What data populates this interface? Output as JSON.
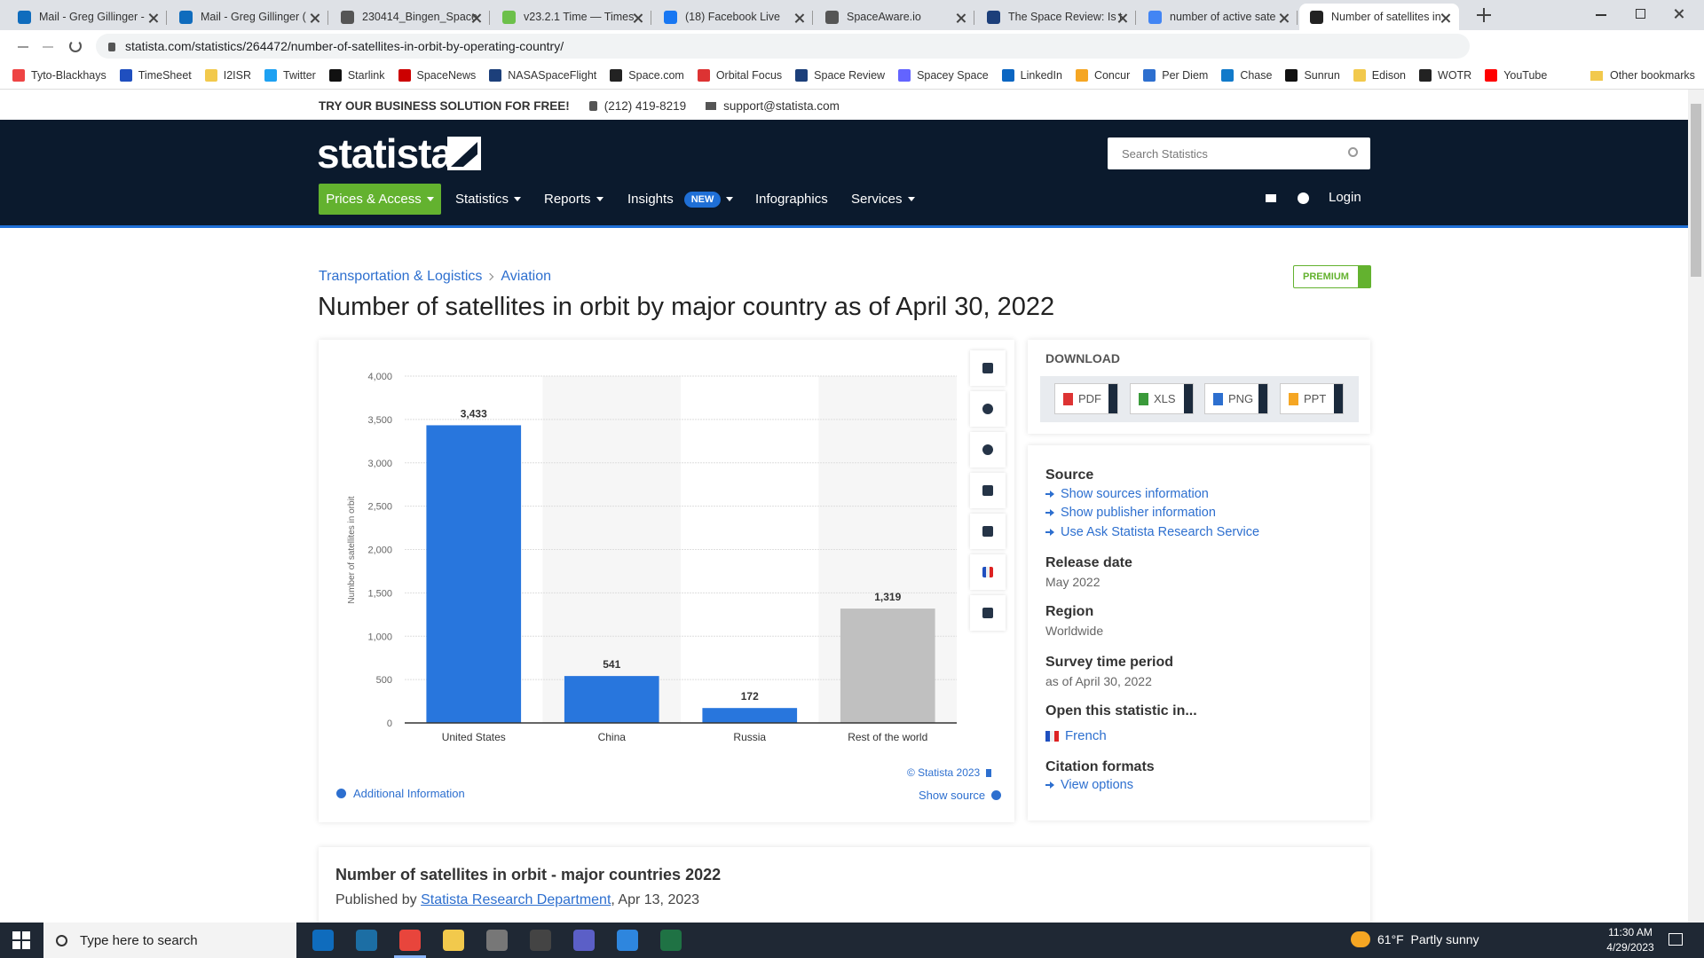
{
  "browser": {
    "tabs": [
      "Mail - Greg Gillinger -",
      "Mail - Greg Gillinger (",
      "230414_Bingen_Space",
      "v23.2.1 Time — Times",
      "(18) Facebook Live",
      "SpaceAware.io",
      "The Space Review: Is t",
      "number of active sate",
      "Number of satellites in"
    ],
    "url": "statista.com/statistics/264472/number-of-satellites-in-orbit-by-operating-country/",
    "bookmarks": [
      "Tyto-Blackhays",
      "TimeSheet",
      "I2ISR",
      "Twitter",
      "Starlink",
      "SpaceNews",
      "NASASpaceFlight",
      "Space.com",
      "Orbital Focus",
      "Space Review",
      "Spacey Space",
      "LinkedIn",
      "Concur",
      "Per Diem",
      "Chase",
      "Sunrun",
      "Edison",
      "WOTR",
      "YouTube"
    ],
    "other_bookmarks": "Other bookmarks"
  },
  "site": {
    "promo": "TRY OUR BUSINESS SOLUTION FOR FREE!",
    "phone": "(212) 419-8219",
    "email": "support@statista.com",
    "logo": "statista",
    "search_placeholder": "Search Statistics",
    "nav": [
      "Prices & Access",
      "Statistics",
      "Reports",
      "Insights",
      "Infographics",
      "Services"
    ],
    "new_badge": "NEW",
    "login": "Login"
  },
  "breadcrumbs": [
    "Transportation & Logistics",
    "Aviation"
  ],
  "premium": "PREMIUM",
  "page_title": "Number of satellites in orbit by major country as of April 30, 2022",
  "chart_data": {
    "type": "bar",
    "categories": [
      "United States",
      "China",
      "Russia",
      "Rest of the world"
    ],
    "values": [
      3433,
      541,
      172,
      1319
    ],
    "value_labels": [
      "3,433",
      "541",
      "172",
      "1,319"
    ],
    "colors": [
      "#2876dd",
      "#2876dd",
      "#2876dd",
      "#c0c0c0"
    ],
    "ylabel": "Number of satellites in orbit",
    "ylim": [
      0,
      4000
    ],
    "yticks": [
      0,
      500,
      {
        "value": 1000,
        "label": "1,000"
      },
      {
        "value": 1500,
        "label": "1,500"
      },
      {
        "value": 2000,
        "label": "2,000"
      },
      {
        "value": 2500,
        "label": "2,500"
      },
      {
        "value": 3000,
        "label": "3,000"
      },
      {
        "value": 3500,
        "label": "3,500"
      },
      {
        "value": 4000,
        "label": "4,000"
      }
    ],
    "grid": true
  },
  "chart_footer": {
    "copyright": "© Statista 2023",
    "show_source": "Show source",
    "additional_info": "Additional Information"
  },
  "download": {
    "heading": "DOWNLOAD",
    "formats": [
      "PDF",
      "XLS",
      "PNG",
      "PPT"
    ]
  },
  "details": {
    "source_heading": "Source",
    "source_links": [
      "Show sources information",
      "Show publisher information",
      "Use Ask Statista Research Service"
    ],
    "release_date_heading": "Release date",
    "release_date": "May 2022",
    "region_heading": "Region",
    "region": "Worldwide",
    "survey_heading": "Survey time period",
    "survey_period": "as of April 30, 2022",
    "open_heading": "Open this statistic in...",
    "open_language": "French",
    "citation_heading": "Citation formats",
    "citation_link": "View options"
  },
  "summary": {
    "title": "Number of satellites in orbit - major countries 2022",
    "published_by": "Published by",
    "publisher": "Statista Research Department",
    "date": ", Apr 13, 2023"
  },
  "taskbar": {
    "search": "Type here to search",
    "weather": "61°F  Partly sunny",
    "time": "11:30 AM",
    "date": "4/29/2023"
  }
}
